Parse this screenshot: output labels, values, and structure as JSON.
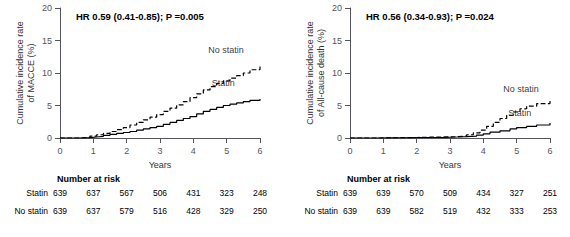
{
  "chart_data": [
    {
      "type": "step",
      "title": "HR 0.59 (0.41-0.85); P =0.005",
      "xlabel": "Years",
      "ylabel": "Cumulative incidence rate\nof MACCE (%)",
      "xlim": [
        0,
        6
      ],
      "ylim": [
        0,
        20
      ],
      "xticks": [
        0,
        1,
        2,
        3,
        4,
        5,
        6
      ],
      "yticks": [
        0,
        5,
        10,
        15,
        20
      ],
      "grid": false,
      "series": [
        {
          "name": "Statin",
          "color": "#000000",
          "line_style": "solid",
          "x": [
            0,
            0.6,
            0.9,
            1.1,
            1.3,
            1.5,
            1.7,
            1.9,
            2.1,
            2.3,
            2.5,
            2.7,
            2.9,
            3.1,
            3.3,
            3.5,
            3.7,
            3.9,
            4.1,
            4.3,
            4.5,
            4.7,
            4.9,
            5.1,
            5.3,
            5.5,
            5.7,
            6.0
          ],
          "values": [
            0,
            0.05,
            0.15,
            0.25,
            0.4,
            0.55,
            0.7,
            0.85,
            1.0,
            1.2,
            1.4,
            1.6,
            1.8,
            2.1,
            2.4,
            2.7,
            3.0,
            3.3,
            3.7,
            4.1,
            4.4,
            4.7,
            5.0,
            5.2,
            5.4,
            5.6,
            5.8,
            6.0
          ]
        },
        {
          "name": "No statin",
          "color": "#000000",
          "line_style": "dashed",
          "x": [
            0,
            0.6,
            0.9,
            1.1,
            1.3,
            1.5,
            1.7,
            1.9,
            2.1,
            2.3,
            2.5,
            2.7,
            2.9,
            3.1,
            3.3,
            3.5,
            3.7,
            3.9,
            4.1,
            4.3,
            4.5,
            4.7,
            4.9,
            5.1,
            5.3,
            5.5,
            5.7,
            6.0
          ],
          "values": [
            0,
            0.1,
            0.3,
            0.5,
            0.7,
            1.0,
            1.3,
            1.6,
            2.0,
            2.4,
            2.8,
            3.2,
            3.6,
            4.1,
            4.6,
            5.1,
            5.6,
            6.2,
            6.8,
            7.4,
            7.9,
            8.4,
            8.8,
            9.2,
            9.6,
            10.0,
            10.5,
            11.0
          ]
        }
      ],
      "annotations": [
        {
          "text": "No statin",
          "x": 4.45,
          "y": 13.5
        },
        {
          "text": "Statin",
          "x": 4.55,
          "y": 8.5
        }
      ],
      "risk_table": {
        "title": "Number at risk",
        "rows": [
          {
            "label": "Statin",
            "values": [
              639,
              637,
              567,
              506,
              431,
              323,
              248
            ]
          },
          {
            "label": "No statin",
            "values": [
              639,
              637,
              579,
              516,
              428,
              329,
              250
            ]
          }
        ]
      }
    },
    {
      "type": "step",
      "title": "HR 0.56 (0.34-0.93); P =0.024",
      "xlabel": "Years",
      "ylabel": "Cumulative incidence rate\nof All-cause death (%)",
      "xlim": [
        0,
        6
      ],
      "ylim": [
        0,
        20
      ],
      "xticks": [
        0,
        1,
        2,
        3,
        4,
        5,
        6
      ],
      "yticks": [
        0,
        5,
        10,
        15,
        20
      ],
      "grid": false,
      "series": [
        {
          "name": "Statin",
          "color": "#000000",
          "line_style": "solid",
          "x": [
            0,
            0.8,
            1.2,
            1.6,
            2.0,
            2.4,
            2.8,
            3.2,
            3.5,
            3.8,
            4.0,
            4.2,
            4.5,
            4.8,
            5.0,
            5.3,
            5.6,
            6.0
          ],
          "values": [
            0,
            0.02,
            0.04,
            0.06,
            0.08,
            0.1,
            0.15,
            0.2,
            0.3,
            0.45,
            0.65,
            0.9,
            1.1,
            1.4,
            1.6,
            1.8,
            2.0,
            2.3
          ]
        },
        {
          "name": "No statin",
          "color": "#000000",
          "line_style": "dashed",
          "x": [
            0,
            0.8,
            1.2,
            1.6,
            2.0,
            2.4,
            2.8,
            3.2,
            3.5,
            3.7,
            3.9,
            4.1,
            4.3,
            4.5,
            4.7,
            4.9,
            5.1,
            5.3,
            5.6,
            6.0
          ],
          "values": [
            0,
            0.02,
            0.05,
            0.08,
            0.12,
            0.15,
            0.2,
            0.3,
            0.5,
            0.8,
            1.2,
            1.8,
            2.4,
            3.0,
            3.5,
            4.0,
            4.5,
            4.9,
            5.3,
            6.0
          ]
        }
      ],
      "annotations": [
        {
          "text": "No statin",
          "x": 4.6,
          "y": 7.5
        },
        {
          "text": "Statin",
          "x": 4.75,
          "y": 3.8
        }
      ],
      "risk_table": {
        "title": "Number at risk",
        "rows": [
          {
            "label": "Statin",
            "values": [
              639,
              639,
              570,
              509,
              434,
              327,
              251
            ]
          },
          {
            "label": "No statin",
            "values": [
              639,
              639,
              582,
              519,
              432,
              333,
              253
            ]
          }
        ]
      }
    }
  ]
}
